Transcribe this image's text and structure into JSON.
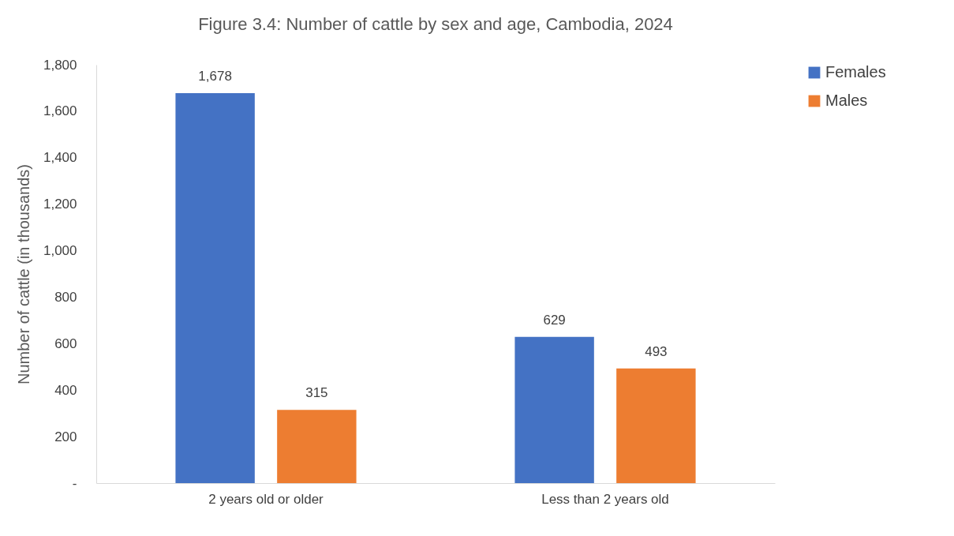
{
  "chart_data": {
    "type": "bar",
    "title": "Figure 3.4: Number of cattle by sex and age, Cambodia, 2024",
    "ylabel": "Number of cattle (in thousands)",
    "categories": [
      "2 years old or older",
      "Less than 2 years old"
    ],
    "series": [
      {
        "name": "Females",
        "color": "#4472c4",
        "values": [
          1678,
          629
        ],
        "value_labels": [
          "1,678",
          "629"
        ]
      },
      {
        "name": "Males",
        "color": "#ed7d31",
        "values": [
          315,
          493
        ],
        "value_labels": [
          "315",
          "493"
        ]
      }
    ],
    "ylim": [
      0,
      1800
    ],
    "yticks": [
      {
        "value": 0,
        "label": "-"
      },
      {
        "value": 200,
        "label": "200"
      },
      {
        "value": 400,
        "label": "400"
      },
      {
        "value": 600,
        "label": "600"
      },
      {
        "value": 800,
        "label": "800"
      },
      {
        "value": 1000,
        "label": "1,000"
      },
      {
        "value": 1200,
        "label": "1,200"
      },
      {
        "value": 1400,
        "label": "1,400"
      },
      {
        "value": 1600,
        "label": "1,600"
      },
      {
        "value": 1800,
        "label": "1,800"
      }
    ],
    "grid": false,
    "legend": "right"
  }
}
